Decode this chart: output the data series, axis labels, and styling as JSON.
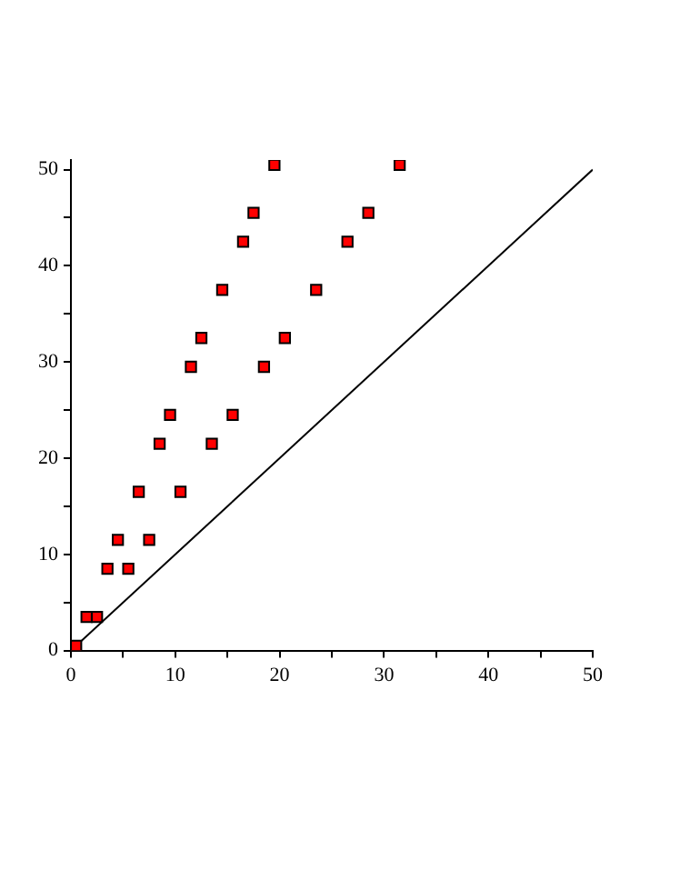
{
  "chart_data": {
    "type": "scatter",
    "xlim": [
      0,
      50
    ],
    "ylim": [
      0,
      51
    ],
    "xticks": [
      0,
      {
        "value": 5,
        "label": null
      },
      10,
      {
        "value": 15,
        "label": null
      },
      20,
      {
        "value": 25,
        "label": null
      },
      30,
      {
        "value": 35,
        "label": null
      },
      40,
      {
        "value": 45,
        "label": null
      },
      50
    ],
    "yticks": [
      0,
      {
        "value": 5,
        "label": null
      },
      10,
      {
        "value": 15,
        "label": null
      },
      20,
      {
        "value": 25,
        "label": null
      },
      30,
      {
        "value": 35,
        "label": null
      },
      40,
      {
        "value": 45,
        "label": null
      },
      50
    ],
    "grid": false,
    "legend": false,
    "series": [
      {
        "type": "scatter",
        "marker": "square",
        "color": "#ff0000",
        "x": [
          0.5,
          1.5,
          2.5,
          3.5,
          4.5,
          5.5,
          6.5,
          7.5,
          8.5,
          9.5,
          10.5,
          11.5,
          12.5,
          13.5,
          14.5,
          15.5,
          16.5,
          17.5,
          18.5,
          19.5,
          20.5,
          23.5,
          26.5,
          28.5,
          31.5
        ],
        "values": [
          0.5,
          3.5,
          3.5,
          8.5,
          11.5,
          8.5,
          16.5,
          11.5,
          21.5,
          24.5,
          16.5,
          29.5,
          32.5,
          21.5,
          37.5,
          24.5,
          42.5,
          45.5,
          29.5,
          50.5,
          32.5,
          37.5,
          42.5,
          45.5,
          50.5
        ]
      },
      {
        "type": "line",
        "marker": "none",
        "line_style": "solid",
        "color": "#000000",
        "x": [
          0,
          50
        ],
        "values": [
          0,
          50
        ]
      }
    ]
  }
}
